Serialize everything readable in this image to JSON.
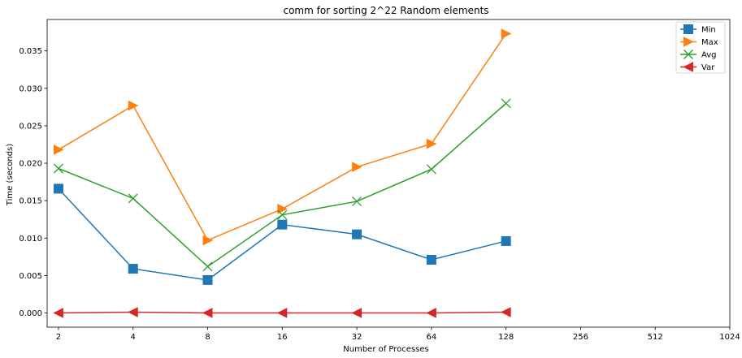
{
  "chart_data": {
    "type": "line",
    "title": "comm for sorting 2^22 Random elements",
    "xlabel": "Number of Processes",
    "ylabel": "Time (seconds)",
    "x_scale": "log2",
    "categories": [
      "2",
      "4",
      "8",
      "16",
      "32",
      "64",
      "128",
      "256",
      "512",
      "1024"
    ],
    "x": [
      2,
      4,
      8,
      16,
      32,
      64,
      128
    ],
    "y_ticks": [
      "0.000",
      "0.005",
      "0.010",
      "0.015",
      "0.020",
      "0.025",
      "0.030",
      "0.035"
    ],
    "ylim": [
      -0.0019,
      0.0392
    ],
    "grid": false,
    "legend_position": "top-right",
    "series": [
      {
        "name": "Min",
        "color": "#1f77b4",
        "marker": "square",
        "values": [
          0.0166,
          0.0059,
          0.0044,
          0.0118,
          0.0105,
          0.0071,
          0.0096
        ]
      },
      {
        "name": "Max",
        "color": "#ff7f0e",
        "marker": "triangle-right",
        "values": [
          0.0218,
          0.0277,
          0.0097,
          0.0139,
          0.0195,
          0.0226,
          0.0373
        ]
      },
      {
        "name": "Avg",
        "color": "#2ca02c",
        "marker": "x",
        "values": [
          0.0193,
          0.0153,
          0.0062,
          0.0131,
          0.0149,
          0.0192,
          0.028
        ]
      },
      {
        "name": "Var",
        "color": "#d62728",
        "marker": "triangle-left",
        "values": [
          0.0,
          0.0001,
          0.0,
          0.0,
          0.0,
          0.0,
          0.0001
        ]
      }
    ]
  }
}
